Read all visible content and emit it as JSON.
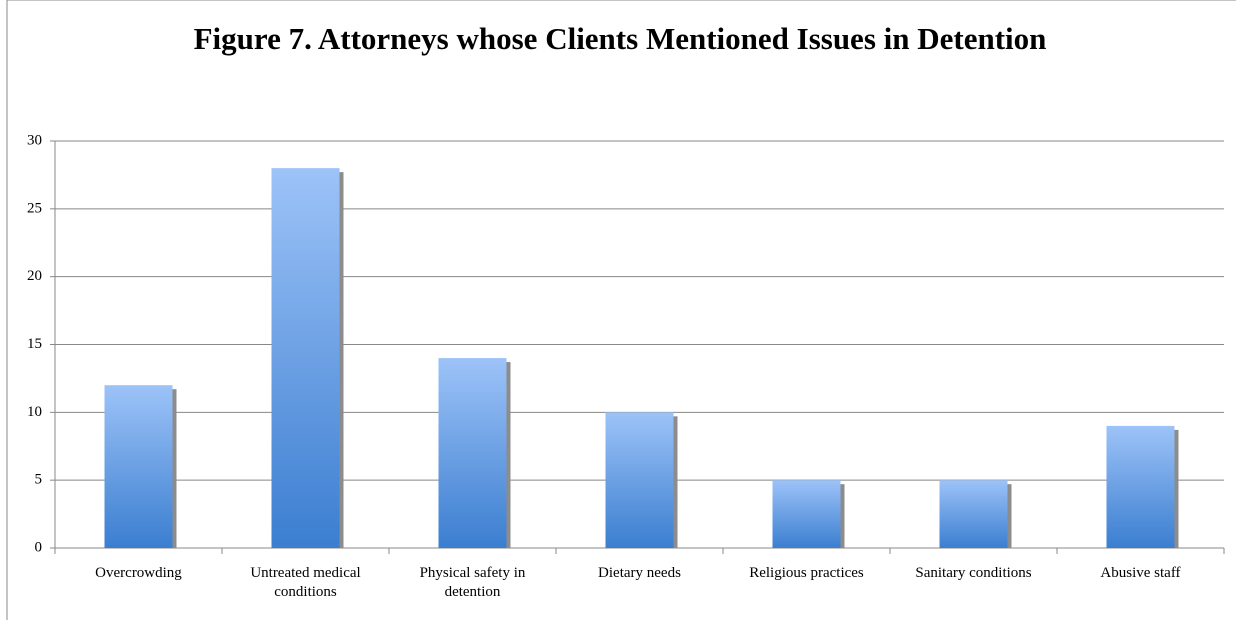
{
  "chart_data": {
    "type": "bar",
    "title": "Figure 7. Attorneys whose Clients Mentioned Issues in Detention",
    "categories": [
      "Overcrowding",
      "Untreated medical conditions",
      "Physical safety in detention",
      "Dietary needs",
      "Religious practices",
      "Sanitary conditions",
      "Abusive staff"
    ],
    "values": [
      12,
      28,
      14,
      10,
      5,
      5,
      9
    ],
    "color": "#4a86d6",
    "ylim": [
      0,
      30
    ],
    "yticks": [
      0,
      5,
      10,
      15,
      20,
      25,
      30
    ],
    "grid": true
  }
}
